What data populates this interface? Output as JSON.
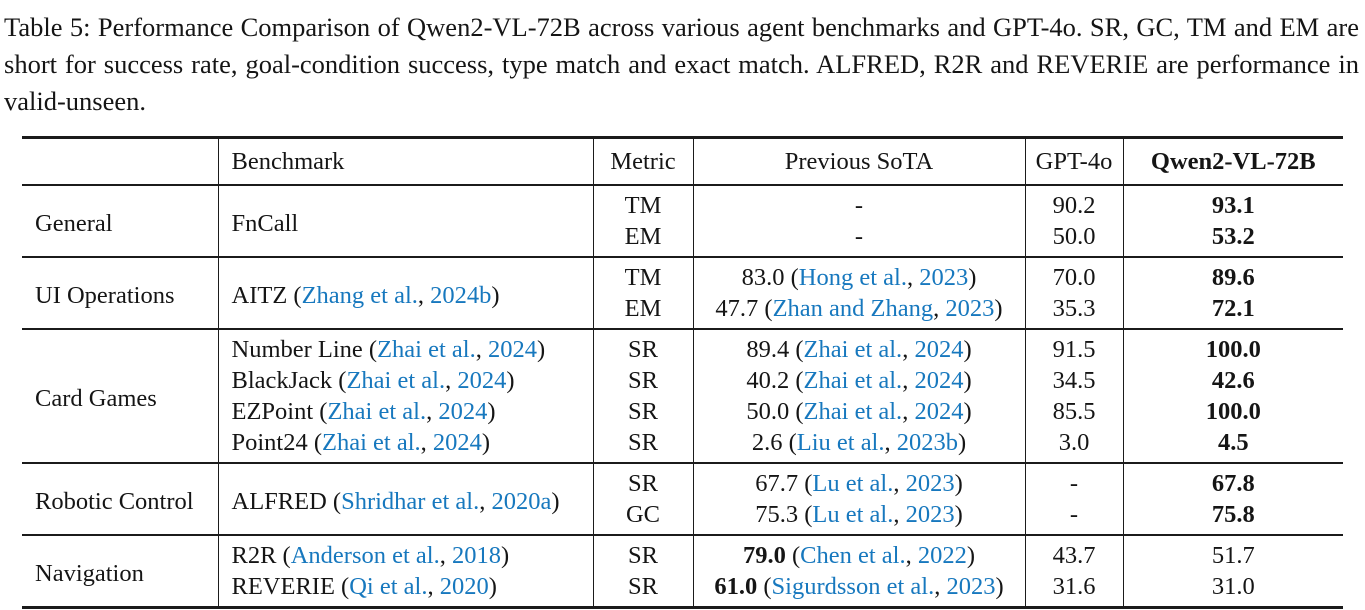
{
  "caption": "Table 5: Performance Comparison of Qwen2-VL-72B across various agent benchmarks and GPT-4o. SR, GC, TM and EM are short for success rate, goal-condition success, type match and exact match.  ALFRED, R2R and REVERIE are performance in valid-unseen.",
  "colors": {
    "link_blue": "#1778be",
    "text": "#151515",
    "rule": "#1b1b1b"
  },
  "table": {
    "headers": [
      {
        "label": "",
        "bold": false
      },
      {
        "label": "Benchmark",
        "bold": false
      },
      {
        "label": "Metric",
        "bold": false
      },
      {
        "label": "Previous SoTA",
        "bold": false
      },
      {
        "label": "GPT-4o",
        "bold": false
      },
      {
        "label": "Qwen2-VL-72B",
        "bold": true
      }
    ],
    "sections": [
      {
        "category": "General",
        "rows": [
          {
            "benchmark": {
              "rowspan": 2,
              "segments": [
                {
                  "t": "FnCall"
                }
              ]
            },
            "metric": "TM",
            "prev": [
              {
                "t": "-"
              }
            ],
            "gpt4o": "90.2",
            "qwen": "93.1",
            "qwen_bold": true
          },
          {
            "metric": "EM",
            "prev": [
              {
                "t": "-"
              }
            ],
            "gpt4o": "50.0",
            "qwen": "53.2",
            "qwen_bold": true
          }
        ]
      },
      {
        "category": "UI Operations",
        "rows": [
          {
            "benchmark": {
              "rowspan": 2,
              "segments": [
                {
                  "t": "AITZ ("
                },
                {
                  "t": "Zhang et al.",
                  "link": true
                },
                {
                  "t": ", "
                },
                {
                  "t": "2024b",
                  "link": true
                },
                {
                  "t": ")"
                }
              ]
            },
            "metric": "TM",
            "prev": [
              {
                "t": "83.0 ("
              },
              {
                "t": "Hong et al.",
                "link": true
              },
              {
                "t": ", "
              },
              {
                "t": "2023",
                "link": true
              },
              {
                "t": ")"
              }
            ],
            "gpt4o": "70.0",
            "qwen": "89.6",
            "qwen_bold": true
          },
          {
            "metric": "EM",
            "prev": [
              {
                "t": "47.7 ("
              },
              {
                "t": "Zhan and Zhang",
                "link": true
              },
              {
                "t": ", "
              },
              {
                "t": "2023",
                "link": true
              },
              {
                "t": ")"
              }
            ],
            "gpt4o": "35.3",
            "qwen": "72.1",
            "qwen_bold": true
          }
        ]
      },
      {
        "category": "Card Games",
        "rows": [
          {
            "benchmark": {
              "rowspan": 1,
              "segments": [
                {
                  "t": "Number Line ("
                },
                {
                  "t": "Zhai et al.",
                  "link": true
                },
                {
                  "t": ", "
                },
                {
                  "t": "2024",
                  "link": true
                },
                {
                  "t": ")"
                }
              ]
            },
            "metric": "SR",
            "prev": [
              {
                "t": "89.4 ("
              },
              {
                "t": "Zhai et al.",
                "link": true
              },
              {
                "t": ", "
              },
              {
                "t": "2024",
                "link": true
              },
              {
                "t": ")"
              }
            ],
            "gpt4o": "91.5",
            "qwen": "100.0",
            "qwen_bold": true
          },
          {
            "benchmark": {
              "rowspan": 1,
              "segments": [
                {
                  "t": "BlackJack ("
                },
                {
                  "t": "Zhai et al.",
                  "link": true
                },
                {
                  "t": ", "
                },
                {
                  "t": "2024",
                  "link": true
                },
                {
                  "t": ")"
                }
              ]
            },
            "metric": "SR",
            "prev": [
              {
                "t": "40.2 ("
              },
              {
                "t": "Zhai et al.",
                "link": true
              },
              {
                "t": ", "
              },
              {
                "t": "2024",
                "link": true
              },
              {
                "t": ")"
              }
            ],
            "gpt4o": "34.5",
            "qwen": "42.6",
            "qwen_bold": true
          },
          {
            "benchmark": {
              "rowspan": 1,
              "segments": [
                {
                  "t": "EZPoint ("
                },
                {
                  "t": "Zhai et al.",
                  "link": true
                },
                {
                  "t": ", "
                },
                {
                  "t": "2024",
                  "link": true
                },
                {
                  "t": ")"
                }
              ]
            },
            "metric": "SR",
            "prev": [
              {
                "t": "50.0 ("
              },
              {
                "t": "Zhai et al.",
                "link": true
              },
              {
                "t": ", "
              },
              {
                "t": "2024",
                "link": true
              },
              {
                "t": ")"
              }
            ],
            "gpt4o": "85.5",
            "qwen": "100.0",
            "qwen_bold": true
          },
          {
            "benchmark": {
              "rowspan": 1,
              "segments": [
                {
                  "t": "Point24 ("
                },
                {
                  "t": "Zhai et al.",
                  "link": true
                },
                {
                  "t": ", "
                },
                {
                  "t": "2024",
                  "link": true
                },
                {
                  "t": ")"
                }
              ]
            },
            "metric": "SR",
            "prev": [
              {
                "t": "2.6 ("
              },
              {
                "t": "Liu et al.",
                "link": true
              },
              {
                "t": ", "
              },
              {
                "t": "2023b",
                "link": true
              },
              {
                "t": ")"
              }
            ],
            "gpt4o": "3.0",
            "qwen": "4.5",
            "qwen_bold": true
          }
        ]
      },
      {
        "category": "Robotic Control",
        "rows": [
          {
            "benchmark": {
              "rowspan": 2,
              "segments": [
                {
                  "t": "ALFRED ("
                },
                {
                  "t": "Shridhar et al.",
                  "link": true
                },
                {
                  "t": ", "
                },
                {
                  "t": "2020a",
                  "link": true
                },
                {
                  "t": ")"
                }
              ]
            },
            "metric": "SR",
            "prev": [
              {
                "t": "67.7 ("
              },
              {
                "t": "Lu et al.",
                "link": true
              },
              {
                "t": ", "
              },
              {
                "t": "2023",
                "link": true
              },
              {
                "t": ")"
              }
            ],
            "gpt4o": "-",
            "qwen": "67.8",
            "qwen_bold": true
          },
          {
            "metric": "GC",
            "prev": [
              {
                "t": "75.3 ("
              },
              {
                "t": "Lu et al.",
                "link": true
              },
              {
                "t": ", "
              },
              {
                "t": "2023",
                "link": true
              },
              {
                "t": ")"
              }
            ],
            "gpt4o": "-",
            "qwen": "75.8",
            "qwen_bold": true
          }
        ]
      },
      {
        "category": "Navigation",
        "rows": [
          {
            "benchmark": {
              "rowspan": 1,
              "segments": [
                {
                  "t": "R2R ("
                },
                {
                  "t": "Anderson et al.",
                  "link": true
                },
                {
                  "t": ", "
                },
                {
                  "t": "2018",
                  "link": true
                },
                {
                  "t": ")"
                }
              ]
            },
            "metric": "SR",
            "prev": [
              {
                "t": "79.0",
                "b": true
              },
              {
                "t": " ("
              },
              {
                "t": "Chen et al.",
                "link": true
              },
              {
                "t": ", "
              },
              {
                "t": "2022",
                "link": true
              },
              {
                "t": ")"
              }
            ],
            "gpt4o": "43.7",
            "qwen": "51.7",
            "qwen_bold": false
          },
          {
            "benchmark": {
              "rowspan": 1,
              "segments": [
                {
                  "t": "REVERIE ("
                },
                {
                  "t": "Qi et al.",
                  "link": true
                },
                {
                  "t": ", "
                },
                {
                  "t": "2020",
                  "link": true
                },
                {
                  "t": ")"
                }
              ]
            },
            "metric": "SR",
            "prev": [
              {
                "t": "61.0",
                "b": true
              },
              {
                "t": " ("
              },
              {
                "t": "Sigurdsson et al.",
                "link": true
              },
              {
                "t": ", "
              },
              {
                "t": "2023",
                "link": true
              },
              {
                "t": ")"
              }
            ],
            "gpt4o": "31.6",
            "qwen": "31.0",
            "qwen_bold": false
          }
        ]
      }
    ]
  }
}
